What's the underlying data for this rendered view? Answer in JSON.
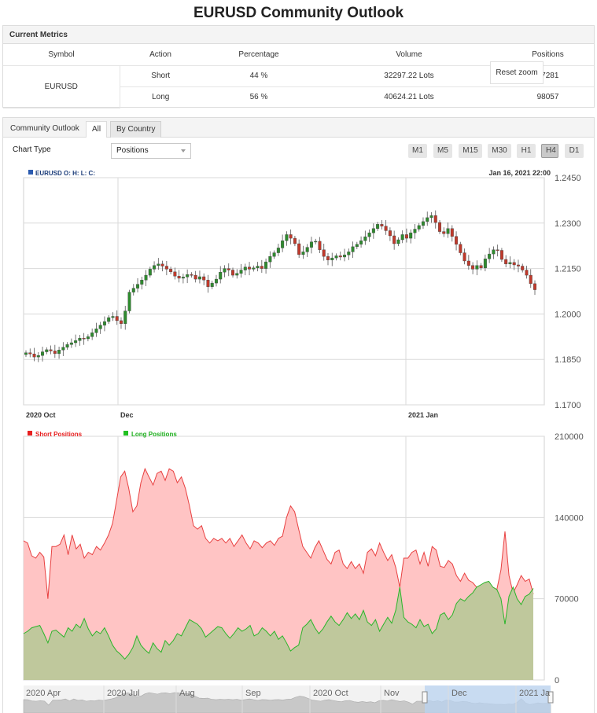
{
  "page_title": "EURUSD Community Outlook",
  "metrics": {
    "header": "Current Metrics",
    "columns": [
      "Symbol",
      "Action",
      "Percentage",
      "Volume",
      "Positions"
    ],
    "symbol": "EURUSD",
    "rows": [
      {
        "action": "Short",
        "percentage": "44 %",
        "volume": "32297.22 Lots",
        "positions": "67281"
      },
      {
        "action": "Long",
        "percentage": "56 %",
        "volume": "40624.21 Lots",
        "positions": "98057"
      }
    ]
  },
  "outlook": {
    "panel_title": "Community Outlook",
    "tabs": [
      "All",
      "By Country"
    ],
    "chart_type_label": "Chart Type",
    "chart_type_value": "Positions",
    "timeframes": [
      "M1",
      "M5",
      "M15",
      "M30",
      "H1",
      "H4",
      "D1"
    ],
    "active_timeframe": "H4",
    "reset_zoom": "Reset zoom"
  },
  "chart_data": [
    {
      "type": "candlestick",
      "legend": "EURUSD O: H: L: C:",
      "hover_label": "Jan 16, 2021 22:00",
      "y_ticks": [
        "1.2450",
        "1.2300",
        "1.2150",
        "1.2000",
        "1.1850",
        "1.1700"
      ],
      "ylim": [
        1.17,
        1.245
      ],
      "x_ticks": [
        "2020 Oct",
        "Dec",
        "2021 Jan"
      ],
      "up_color": "#2e8b2e",
      "down_color": "#c0392b",
      "close_path": [
        1.1872,
        1.1868,
        1.1858,
        1.1863,
        1.1875,
        1.1882,
        1.1878,
        1.1869,
        1.1881,
        1.189,
        1.1899,
        1.1905,
        1.1912,
        1.192,
        1.1918,
        1.1925,
        1.1938,
        1.1951,
        1.1963,
        1.1975,
        1.1988,
        1.1992,
        1.1978,
        1.1968,
        1.201,
        1.2072,
        1.2085,
        1.2098,
        1.2112,
        1.2128,
        1.2148,
        1.216,
        1.2165,
        1.2158,
        1.2148,
        1.2139,
        1.2125,
        1.2118,
        1.2122,
        1.213,
        1.2128,
        1.2115,
        1.2123,
        1.2112,
        1.209,
        1.2102,
        1.2115,
        1.2138,
        1.215,
        1.2145,
        1.2128,
        1.2134,
        1.2145,
        1.2155,
        1.2148,
        1.2152,
        1.2158,
        1.215,
        1.2172,
        1.219,
        1.2202,
        1.2218,
        1.2242,
        1.2262,
        1.225,
        1.2232,
        1.2196,
        1.2205,
        1.222,
        1.2238,
        1.224,
        1.2212,
        1.219,
        1.2178,
        1.2185,
        1.2192,
        1.2188,
        1.2195,
        1.2205,
        1.2222,
        1.223,
        1.2242,
        1.2255,
        1.2268,
        1.2282,
        1.2296,
        1.229,
        1.2275,
        1.2258,
        1.2232,
        1.2245,
        1.2262,
        1.225,
        1.2268,
        1.228,
        1.2292,
        1.2305,
        1.2318,
        1.2325,
        1.2302,
        1.2272,
        1.2265,
        1.2282,
        1.2256,
        1.223,
        1.2202,
        1.2175,
        1.216,
        1.2148,
        1.216,
        1.2152,
        1.2182,
        1.2198,
        1.2212,
        1.221,
        1.218,
        1.2165,
        1.217,
        1.2162,
        1.2158,
        1.2145,
        1.2128,
        1.21,
        1.208
      ]
    },
    {
      "type": "area",
      "series": [
        {
          "name": "Short Positions",
          "color": "#e84040"
        },
        {
          "name": "Long Positions",
          "color": "#2ab52a"
        }
      ],
      "y_ticks": [
        "210000",
        "140000",
        "70000",
        "0"
      ],
      "ylim": [
        0,
        210000
      ],
      "navigator_labels": [
        "2020 Apr",
        "2020 Jul",
        "Aug",
        "Sep",
        "2020 Oct",
        "Nov",
        "Dec",
        "2021 Ja"
      ],
      "short_values": [
        120000,
        118000,
        107000,
        105000,
        110000,
        106000,
        70000,
        115000,
        115000,
        117000,
        125000,
        108000,
        125000,
        113000,
        117000,
        105000,
        110000,
        108000,
        115000,
        112000,
        118000,
        125000,
        135000,
        155000,
        175000,
        180000,
        165000,
        145000,
        150000,
        170000,
        182000,
        175000,
        168000,
        178000,
        180000,
        172000,
        182000,
        180000,
        170000,
        175000,
        165000,
        150000,
        133000,
        130000,
        133000,
        122000,
        118000,
        122000,
        120000,
        122000,
        118000,
        122000,
        115000,
        120000,
        125000,
        118000,
        113000,
        120000,
        118000,
        114000,
        118000,
        120000,
        116000,
        122000,
        124000,
        140000,
        150000,
        145000,
        130000,
        115000,
        110000,
        105000,
        114000,
        120000,
        112000,
        104000,
        100000,
        110000,
        112000,
        100000,
        96000,
        102000,
        96000,
        100000,
        92000,
        110000,
        113000,
        107000,
        118000,
        110000,
        103000,
        108000,
        97000,
        80000,
        105000,
        105000,
        110000,
        112000,
        100000,
        110000,
        98000,
        115000,
        112000,
        98000,
        97000,
        103000,
        100000,
        90000,
        85000,
        92000,
        86000,
        84000,
        80000,
        76000,
        78000,
        75000,
        80000,
        78000,
        95000,
        128000,
        90000,
        75000,
        82000,
        90000,
        85000,
        87000,
        74000
      ],
      "long_values": [
        40000,
        42000,
        45000,
        46000,
        47000,
        40000,
        32000,
        42000,
        43000,
        40000,
        37000,
        45000,
        42000,
        48000,
        45000,
        53000,
        44000,
        38000,
        42000,
        40000,
        45000,
        38000,
        30000,
        25000,
        22000,
        18000,
        22000,
        28000,
        38000,
        30000,
        26000,
        23000,
        32000,
        27000,
        24000,
        34000,
        30000,
        34000,
        40000,
        38000,
        45000,
        52000,
        50000,
        48000,
        44000,
        37000,
        40000,
        43000,
        46000,
        45000,
        40000,
        36000,
        40000,
        45000,
        42000,
        44000,
        47000,
        38000,
        40000,
        45000,
        42000,
        38000,
        42000,
        35000,
        38000,
        32000,
        25000,
        28000,
        30000,
        45000,
        48000,
        52000,
        45000,
        40000,
        44000,
        50000,
        55000,
        50000,
        47000,
        52000,
        58000,
        53000,
        57000,
        52000,
        60000,
        50000,
        47000,
        52000,
        42000,
        48000,
        54000,
        49000,
        60000,
        80000,
        54000,
        50000,
        48000,
        45000,
        52000,
        46000,
        48000,
        40000,
        44000,
        56000,
        58000,
        52000,
        56000,
        66000,
        70000,
        68000,
        72000,
        75000,
        80000,
        82000,
        84000,
        85000,
        80000,
        78000,
        70000,
        48000,
        72000,
        80000,
        70000,
        65000,
        72000,
        74000,
        79000
      ]
    }
  ]
}
